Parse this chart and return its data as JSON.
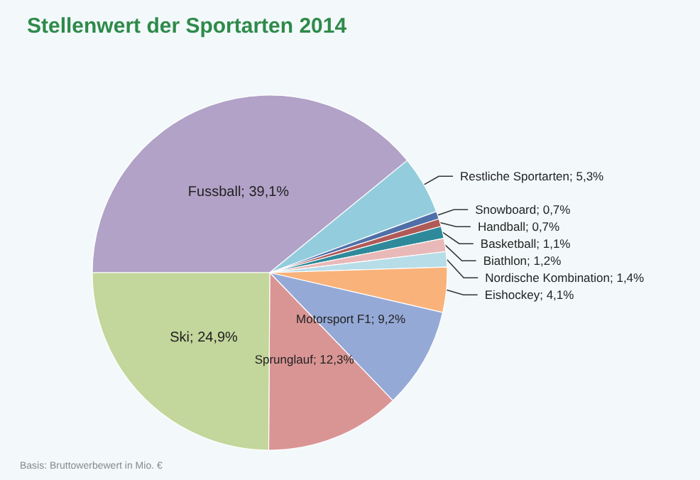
{
  "chart_data": {
    "type": "pie",
    "title": "Stellenwert der Sportarten 2014",
    "categories": [
      "Fussball",
      "Restliche Sportarten",
      "Snowboard",
      "Handball",
      "Basketball",
      "Biathlon",
      "Nordische Kombination",
      "Eishockey",
      "Motorsport F1",
      "Sprunglauf",
      "Ski"
    ],
    "values": [
      39.1,
      5.3,
      0.7,
      0.7,
      1.1,
      1.2,
      1.4,
      4.1,
      9.2,
      12.3,
      24.9
    ],
    "value_labels": [
      "39,1%",
      "5,3%",
      "0,7%",
      "0,7%",
      "1,1%",
      "1,2%",
      "1,4%",
      "4,1%",
      "9,2%",
      "12,3%",
      "24,9%"
    ],
    "colors": [
      "#b2a2c7",
      "#93cddd",
      "#4f6fa8",
      "#b05a58",
      "#2e8a9a",
      "#e8b9b8",
      "#b7dde8",
      "#f9b27a",
      "#95a9d6",
      "#d99594",
      "#c3d69b"
    ],
    "annotations": [
      "Basis: Bruttowerbewert in Mio. €"
    ]
  }
}
